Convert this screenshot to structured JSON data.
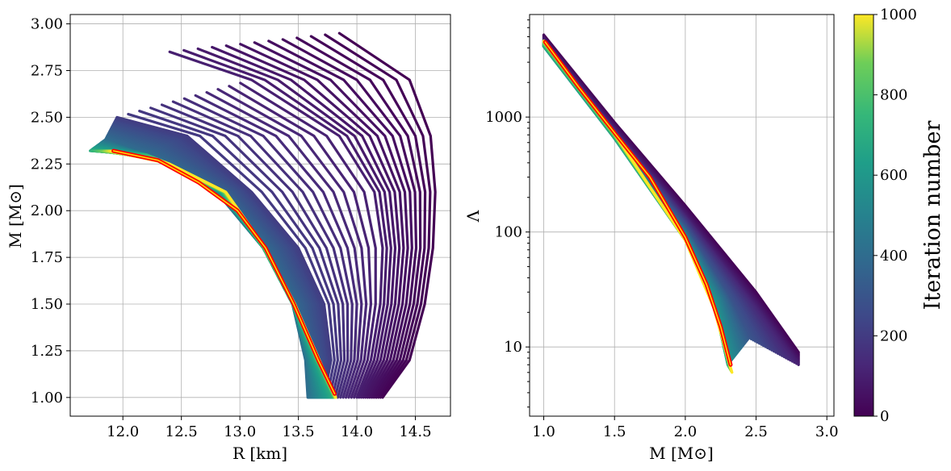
{
  "chart_data": [
    {
      "type": "line",
      "xlabel": "R [km]",
      "ylabel": "M [M⊙]",
      "xlim": [
        11.55,
        14.8
      ],
      "ylim": [
        0.9,
        3.05
      ],
      "xticks": [
        12.0,
        12.5,
        13.0,
        13.5,
        14.0,
        14.5
      ],
      "xtick_labels": [
        "12.0",
        "12.5",
        "13.0",
        "13.5",
        "14.0",
        "14.5"
      ],
      "yticks": [
        1.0,
        1.25,
        1.5,
        1.75,
        2.0,
        2.25,
        2.5,
        2.75,
        3.0
      ],
      "ytick_labels": [
        "1.00",
        "1.25",
        "1.50",
        "1.75",
        "2.00",
        "2.25",
        "2.50",
        "2.75",
        "3.00"
      ],
      "grid": true,
      "colormap": "viridis",
      "series": [
        {
          "iteration": 0,
          "M": [
            1.0,
            1.2,
            1.5,
            1.8,
            2.1,
            2.4,
            2.7,
            2.95
          ],
          "R": [
            14.22,
            14.45,
            14.58,
            14.65,
            14.67,
            14.63,
            14.45,
            13.85
          ]
        },
        {
          "iteration": 100,
          "M": [
            1.0,
            1.2,
            1.5,
            1.8,
            2.1,
            2.4,
            2.7,
            2.85
          ],
          "R": [
            14.0,
            14.12,
            14.2,
            14.22,
            14.15,
            13.85,
            13.1,
            12.4
          ]
        },
        {
          "iteration": 200,
          "M": [
            1.0,
            1.2,
            1.5,
            1.8,
            2.1,
            2.4,
            2.5
          ],
          "R": [
            13.72,
            13.78,
            13.72,
            13.5,
            13.1,
            12.55,
            11.95
          ]
        },
        {
          "iteration": 400,
          "M": [
            1.0,
            1.2,
            1.5,
            1.8,
            2.1,
            2.3,
            2.38
          ],
          "R": [
            13.58,
            13.56,
            13.45,
            13.2,
            12.8,
            12.2,
            11.85
          ]
        },
        {
          "iteration": 700,
          "M": [
            1.0,
            1.2,
            1.5,
            1.8,
            2.1,
            2.3,
            2.32
          ],
          "R": [
            13.8,
            13.65,
            13.45,
            13.2,
            12.85,
            12.2,
            11.72
          ]
        },
        {
          "iteration": 1000,
          "M": [
            1.0,
            1.2,
            1.5,
            1.8,
            2.1,
            2.25,
            2.32
          ],
          "R": [
            13.82,
            13.68,
            13.47,
            13.22,
            12.88,
            12.4,
            11.9
          ]
        }
      ],
      "highlight": {
        "color_outer": "#ff0000",
        "color_inner": "#ffd700",
        "M": [
          1.02,
          1.2,
          1.5,
          1.8,
          2.0,
          2.15,
          2.27,
          2.32
        ],
        "R": [
          13.81,
          13.67,
          13.46,
          13.22,
          12.98,
          12.65,
          12.3,
          11.92
        ]
      }
    },
    {
      "type": "line",
      "xlabel": "M [M⊙]",
      "ylabel": "Λ",
      "scale_y": "log",
      "xlim": [
        0.9,
        3.05
      ],
      "ylim": [
        2.5,
        7800
      ],
      "xticks": [
        1.0,
        1.5,
        2.0,
        2.5,
        3.0
      ],
      "xtick_labels": [
        "1.0",
        "1.5",
        "2.0",
        "2.5",
        "3.0"
      ],
      "yticks": [
        10,
        100,
        1000
      ],
      "ytick_labels": [
        "10",
        "100",
        "1000"
      ],
      "grid": true,
      "colormap": "viridis",
      "series": [
        {
          "iteration": 0,
          "M": [
            1.0,
            1.5,
            2.0,
            2.5,
            2.8,
            2.95
          ],
          "Lambda": [
            5200,
            900,
            170,
            30,
            9,
            4
          ]
        },
        {
          "iteration": 100,
          "M": [
            1.0,
            1.5,
            2.0,
            2.5,
            2.8
          ],
          "Lambda": [
            4700,
            780,
            140,
            23,
            7
          ]
        },
        {
          "iteration": 300,
          "M": [
            1.0,
            1.5,
            2.0,
            2.3,
            2.45
          ],
          "Lambda": [
            4300,
            700,
            110,
            28,
            12
          ]
        },
        {
          "iteration": 600,
          "M": [
            1.0,
            1.5,
            2.0,
            2.2,
            2.3
          ],
          "Lambda": [
            4100,
            650,
            85,
            25,
            7
          ]
        },
        {
          "iteration": 1000,
          "M": [
            1.0,
            1.5,
            2.0,
            2.2,
            2.33
          ],
          "Lambda": [
            4600,
            720,
            85,
            22,
            6
          ]
        }
      ],
      "highlight": {
        "color_outer": "#ff0000",
        "color_inner": "#ffd700",
        "M": [
          1.01,
          1.25,
          1.5,
          1.75,
          2.0,
          2.15,
          2.25,
          2.32
        ],
        "Lambda": [
          4500,
          1800,
          730,
          300,
          90,
          35,
          15,
          7
        ]
      }
    }
  ],
  "colorbar": {
    "label": "Iteration number",
    "colormap": "viridis",
    "range": [
      0,
      1000
    ],
    "ticks": [
      0,
      200,
      400,
      600,
      800,
      1000
    ],
    "tick_labels": [
      "0",
      "200",
      "400",
      "600",
      "800",
      "1000"
    ]
  }
}
